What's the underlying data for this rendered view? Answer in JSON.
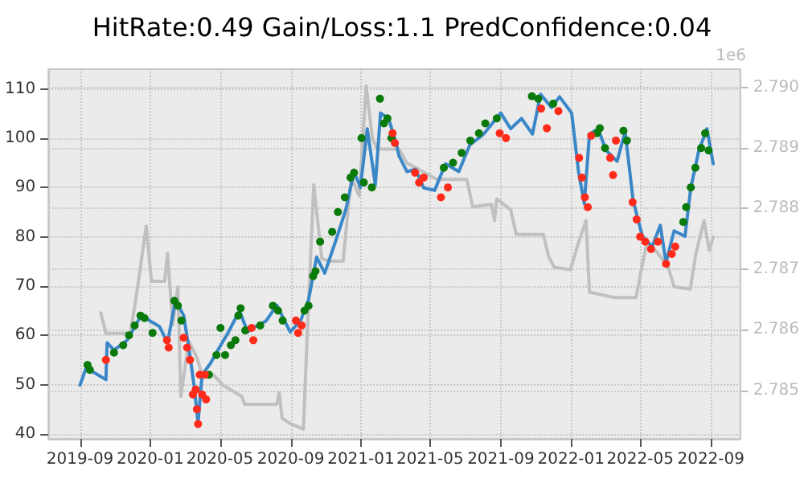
{
  "chart_data": {
    "type": "line",
    "title": "HitRate:0.49 Gain/Loss:1.1 PredConfidence:0.04",
    "annotations": [
      "1e6"
    ],
    "xlim": [
      "2019-07-08",
      "2022-10-22"
    ],
    "xticks": [
      "2019-09",
      "2020-01",
      "2020-05",
      "2020-09",
      "2021-01",
      "2021-05",
      "2021-09",
      "2022-01",
      "2022-05",
      "2022-09"
    ],
    "ylim": [
      39,
      114
    ],
    "yticks": [
      40,
      50,
      60,
      70,
      80,
      90,
      100,
      110
    ],
    "y2lim": [
      2.7842,
      2.7903
    ],
    "y2ticks": [
      {
        "value": 2.785,
        "label": "2.785"
      },
      {
        "value": 2.786,
        "label": "2.786"
      },
      {
        "value": 2.787,
        "label": "2.787"
      },
      {
        "value": 2.788,
        "label": "2.788"
      },
      {
        "value": 2.789,
        "label": "2.789"
      },
      {
        "value": 2.79,
        "label": "2.790"
      }
    ],
    "grid": true,
    "line_style": "solid",
    "series": [
      {
        "axis": "y2",
        "color": "#c0c0c0",
        "x": [
          "2019-10-07",
          "2019-10-16",
          "2019-11-27",
          "2019-12-06",
          "2019-12-25",
          "2020-01-03",
          "2020-01-26",
          "2020-01-31",
          "2020-02-09",
          "2020-02-18",
          "2020-02-23",
          "2020-03-08",
          "2020-03-22",
          "2020-03-31",
          "2020-04-19",
          "2020-05-07",
          "2020-06-08",
          "2020-06-13",
          "2020-08-08",
          "2020-08-12",
          "2020-08-17",
          "2020-08-31",
          "2020-09-23",
          "2020-09-30",
          "2020-10-11",
          "2020-10-25",
          "2020-11-08",
          "2020-12-01",
          "2020-12-15",
          "2020-12-29",
          "2021-01-10",
          "2021-01-21",
          "2021-01-29",
          "2021-03-08",
          "2021-03-22",
          "2021-05-13",
          "2021-07-04",
          "2021-07-14",
          "2021-08-16",
          "2021-08-21",
          "2021-08-25",
          "2021-09-18",
          "2021-09-28",
          "2021-11-14",
          "2021-11-23",
          "2021-12-03",
          "2021-12-31",
          "2022-01-14",
          "2022-01-27",
          "2022-02-02",
          "2022-03-17",
          "2022-04-24",
          "2022-05-03",
          "2022-05-13",
          "2022-06-01",
          "2022-06-19",
          "2022-06-29",
          "2022-07-27",
          "2022-08-06",
          "2022-08-20",
          "2022-08-29",
          "2022-09-05"
        ],
        "values": [
          2.78628,
          2.78594,
          2.78594,
          2.78644,
          2.78771,
          2.7868,
          2.7868,
          2.78726,
          2.78608,
          2.78671,
          2.7849,
          2.78581,
          2.78554,
          2.78526,
          2.78526,
          2.78508,
          2.7849,
          2.78477,
          2.78477,
          2.78496,
          2.78454,
          2.78445,
          2.78436,
          2.78599,
          2.78839,
          2.78717,
          2.78713,
          2.78713,
          2.78852,
          2.78821,
          2.79002,
          2.78916,
          2.78898,
          2.78898,
          2.78875,
          2.78848,
          2.78848,
          2.78803,
          2.78807,
          2.7878,
          2.78816,
          2.78798,
          2.78757,
          2.78757,
          2.78721,
          2.78703,
          2.78699,
          2.78744,
          2.7878,
          2.78662,
          2.78653,
          2.78653,
          2.78699,
          2.78744,
          2.78726,
          2.78703,
          2.78671,
          2.78667,
          2.78726,
          2.7878,
          2.78731,
          2.78753
        ]
      },
      {
        "color": "#3a87c8",
        "x": [
          "2019-09-01",
          "2019-09-14",
          "2019-09-23",
          "2019-10-16",
          "2019-10-18",
          "2019-10-30",
          "2019-11-22",
          "2019-12-16",
          "2020-01-01",
          "2020-01-17",
          "2020-01-31",
          "2020-02-14",
          "2020-02-28",
          "2020-03-08",
          "2020-03-17",
          "2020-03-24",
          "2020-03-31",
          "2020-04-14",
          "2020-04-30",
          "2020-05-16",
          "2020-06-04",
          "2020-06-18",
          "2020-07-02",
          "2020-07-20",
          "2020-08-08",
          "2020-08-31",
          "2020-09-18",
          "2020-10-02",
          "2020-10-16",
          "2020-10-30",
          "2020-11-18",
          "2020-12-06",
          "2020-12-20",
          "2020-12-31",
          "2021-01-12",
          "2021-01-26",
          "2021-02-04",
          "2021-02-18",
          "2021-03-04",
          "2021-03-08",
          "2021-03-22",
          "2021-04-06",
          "2021-04-20",
          "2021-05-09",
          "2021-05-28",
          "2021-06-20",
          "2021-07-09",
          "2021-08-02",
          "2021-09-01",
          "2021-09-18",
          "2021-10-07",
          "2021-10-26",
          "2021-11-09",
          "2021-11-28",
          "2021-12-12",
          "2022-01-02",
          "2022-01-14",
          "2022-01-24",
          "2022-02-02",
          "2022-02-17",
          "2022-03-03",
          "2022-03-22",
          "2022-04-05",
          "2022-04-19",
          "2022-05-05",
          "2022-05-22",
          "2022-06-05",
          "2022-06-15",
          "2022-06-29",
          "2022-07-18",
          "2022-07-28",
          "2022-08-11",
          "2022-08-25",
          "2022-09-05"
        ],
        "values": [
          49.9,
          54.2,
          52.6,
          51,
          58.5,
          57,
          59,
          64,
          62.9,
          61.8,
          58.5,
          67.2,
          64,
          57.5,
          49.9,
          42.3,
          52,
          54.2,
          57.5,
          60.7,
          65,
          60.7,
          61.8,
          62.9,
          66.1,
          60.7,
          62.9,
          67.2,
          75.9,
          72.6,
          79.1,
          85.6,
          93.2,
          90,
          101.9,
          90.5,
          105.1,
          104,
          98.6,
          96.4,
          93.2,
          93.7,
          89.9,
          89.4,
          94.8,
          93.2,
          98.6,
          100.8,
          105.1,
          101.9,
          104,
          100.8,
          108.9,
          106.2,
          108.4,
          105.1,
          93.2,
          86.7,
          100.8,
          101.9,
          97.5,
          95.3,
          101.3,
          87.2,
          80.1,
          78,
          82.3,
          74.7,
          81.2,
          80.1,
          89.9,
          97.5,
          101.9,
          94.8
        ]
      },
      {
        "type": "scatter",
        "marker": "circle",
        "color": "#0a7a0a",
        "x": [
          "2019-09-14",
          "2019-09-18",
          "2019-10-30",
          "2019-11-15",
          "2019-11-25",
          "2019-12-05",
          "2019-12-15",
          "2019-12-22",
          "2020-01-05",
          "2020-02-12",
          "2020-02-18",
          "2020-02-24",
          "2020-04-12",
          "2020-04-25",
          "2020-05-02",
          "2020-05-10",
          "2020-05-20",
          "2020-05-28",
          "2020-06-02",
          "2020-06-06",
          "2020-06-14",
          "2020-07-10",
          "2020-08-01",
          "2020-08-10",
          "2020-08-18",
          "2020-09-25",
          "2020-10-02",
          "2020-10-10",
          "2020-10-14",
          "2020-10-22",
          "2020-11-12",
          "2020-11-22",
          "2020-12-04",
          "2020-12-14",
          "2020-12-20",
          "2021-01-02",
          "2021-01-06",
          "2021-01-20",
          "2021-02-03",
          "2021-02-10",
          "2021-02-16",
          "2021-02-23",
          "2021-05-25",
          "2021-06-10",
          "2021-06-25",
          "2021-07-10",
          "2021-07-25",
          "2021-08-05",
          "2021-08-25",
          "2021-10-25",
          "2021-11-05",
          "2021-12-01",
          "2022-02-15",
          "2022-02-20",
          "2022-03-01",
          "2022-04-02",
          "2022-04-08",
          "2022-07-15",
          "2022-07-20",
          "2022-07-28",
          "2022-08-05",
          "2022-08-15",
          "2022-08-22",
          "2022-08-28"
        ],
        "values": [
          54,
          53,
          56.5,
          58,
          60,
          62,
          64,
          63.5,
          60.5,
          67,
          66,
          63,
          52,
          56,
          61.5,
          56,
          58,
          59,
          64,
          65.5,
          61,
          62,
          66,
          65,
          63,
          65,
          66,
          72,
          73,
          79,
          81,
          85,
          88,
          92,
          93,
          100,
          91,
          90,
          108,
          103,
          104,
          100,
          94,
          95,
          97,
          99.5,
          101,
          103,
          104,
          108.5,
          108,
          107,
          101,
          102,
          98,
          101.5,
          99.5,
          83,
          86,
          90,
          94,
          98,
          101,
          97.5
        ]
      },
      {
        "type": "scatter",
        "marker": "circle",
        "color": "#ff2a1a",
        "x": [
          "2019-10-16",
          "2020-01-30",
          "2020-02-02",
          "2020-02-28",
          "2020-03-05",
          "2020-03-10",
          "2020-03-15",
          "2020-03-20",
          "2020-03-22",
          "2020-03-24",
          "2020-03-27",
          "2020-03-31",
          "2020-04-05",
          "2020-04-07",
          "2020-06-25",
          "2020-06-28",
          "2020-09-10",
          "2020-09-14",
          "2020-09-20",
          "2021-02-25",
          "2021-03-01",
          "2021-04-05",
          "2021-04-12",
          "2021-04-20",
          "2021-05-20",
          "2021-06-01",
          "2021-08-30",
          "2021-09-10",
          "2021-11-10",
          "2021-11-20",
          "2021-12-10",
          "2022-01-15",
          "2022-01-20",
          "2022-01-25",
          "2022-01-30",
          "2022-02-05",
          "2022-03-10",
          "2022-03-15",
          "2022-03-20",
          "2022-04-18",
          "2022-04-25",
          "2022-05-01",
          "2022-05-10",
          "2022-05-20",
          "2022-06-01",
          "2022-06-15",
          "2022-06-25",
          "2022-07-01"
        ],
        "values": [
          55,
          59,
          57.5,
          59.5,
          57.5,
          55,
          48,
          49,
          45,
          42,
          52,
          48,
          52,
          47,
          61.5,
          59,
          63,
          60.5,
          62,
          101,
          99,
          93,
          91,
          92,
          88,
          90,
          101,
          100,
          106,
          102,
          105.5,
          96,
          92,
          88,
          86,
          100.5,
          96,
          92.5,
          99.5,
          87,
          83.5,
          80,
          79,
          77.5,
          79,
          74.5,
          76.5,
          78
        ]
      }
    ]
  }
}
